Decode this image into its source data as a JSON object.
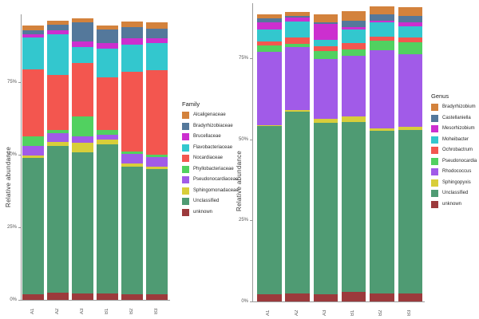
{
  "figure": {
    "background": "#ffffff",
    "axis_color": "#9a9a9a",
    "text_color": "#555555"
  },
  "chart_data": [
    {
      "type": "bar",
      "stacked": true,
      "panel": "left",
      "title": "",
      "xlabel": "",
      "ylabel": "Relative abundance",
      "legend_title": "Family",
      "legend_position": "right",
      "grid": false,
      "ylim": [
        0,
        100
      ],
      "y_ticks": [
        {
          "label": "0%",
          "value": 0
        },
        {
          "label": "25%",
          "value": 25
        },
        {
          "label": "50%",
          "value": 50
        },
        {
          "label": "75%",
          "value": 75
        }
      ],
      "categories": [
        "A1",
        "A2",
        "A3",
        "B1",
        "B2",
        "B3"
      ],
      "stack_order": "bottom-to-top",
      "series": [
        {
          "name": "unknown",
          "color": "#9c3a3c",
          "values": [
            1.8,
            2.5,
            2.3,
            2.3,
            2.0,
            2.0
          ]
        },
        {
          "name": "Unclassified",
          "color": "#4f9b73",
          "values": [
            47.1,
            50.5,
            48.5,
            51.3,
            44.0,
            43.0
          ]
        },
        {
          "name": "Sphingomonadaceae",
          "color": "#d8ce3a",
          "values": [
            0.9,
            1.4,
            3.2,
            1.6,
            1.0,
            0.9
          ]
        },
        {
          "name": "Pseudonocardiaceae",
          "color": "#a15be8",
          "values": [
            3.2,
            2.9,
            2.3,
            1.6,
            3.4,
            3.3
          ]
        },
        {
          "name": "Phyllobacteriaceae",
          "color": "#51d160",
          "values": [
            3.2,
            1.1,
            6.9,
            1.6,
            0.8,
            0.9
          ]
        },
        {
          "name": "Nocardiaceae",
          "color": "#f3564f",
          "values": [
            23.1,
            19.2,
            18.3,
            18.3,
            27.5,
            29.1
          ]
        },
        {
          "name": "Flavobacteriaceae",
          "color": "#33c7ce",
          "values": [
            11.0,
            13.8,
            5.6,
            9.9,
            9.3,
            9.4
          ]
        },
        {
          "name": "Brucellaceae",
          "color": "#cc2fcf",
          "values": [
            1.1,
            1.4,
            1.9,
            1.9,
            2.0,
            1.4
          ]
        },
        {
          "name": "Bradyrhizobiaceae",
          "color": "#54789b",
          "values": [
            1.6,
            1.9,
            6.6,
            4.7,
            4.1,
            3.3
          ]
        },
        {
          "name": "Alcaligenaceae",
          "color": "#d3823c",
          "values": [
            1.6,
            1.4,
            1.4,
            1.4,
            1.9,
            2.4
          ]
        }
      ]
    },
    {
      "type": "bar",
      "stacked": true,
      "panel": "right",
      "title": "",
      "xlabel": "",
      "ylabel": "Relative abundance",
      "legend_title": "Genus",
      "legend_position": "right",
      "grid": false,
      "ylim": [
        0,
        100
      ],
      "y_ticks": [
        {
          "label": "0%",
          "value": 0
        },
        {
          "label": "25%",
          "value": 25
        },
        {
          "label": "50%",
          "value": 50
        },
        {
          "label": "75%",
          "value": 75
        }
      ],
      "categories": [
        "A1",
        "A2",
        "A3",
        "B1",
        "B2",
        "B3"
      ],
      "stack_order": "bottom-to-top",
      "series": [
        {
          "name": "unknown",
          "color": "#9c3a3c",
          "values": [
            2.1,
            2.4,
            2.1,
            2.9,
            2.4,
            2.4
          ]
        },
        {
          "name": "Unclassified",
          "color": "#4f9b73",
          "values": [
            52.0,
            56.2,
            53.0,
            52.4,
            50.1,
            50.5
          ]
        },
        {
          "name": "Sphingopyxis",
          "color": "#d8ce3a",
          "values": [
            0.3,
            0.3,
            1.2,
            1.6,
            0.8,
            0.8
          ]
        },
        {
          "name": "Rhodococcus",
          "color": "#a15be8",
          "values": [
            22.4,
            19.6,
            18.4,
            18.7,
            24.2,
            22.4
          ]
        },
        {
          "name": "Pseudonocardia",
          "color": "#51d160",
          "values": [
            2.0,
            0.8,
            2.4,
            2.0,
            2.8,
            3.7
          ]
        },
        {
          "name": "Ochrobactrum",
          "color": "#f3564f",
          "values": [
            1.2,
            2.0,
            1.6,
            2.0,
            1.2,
            1.6
          ]
        },
        {
          "name": "Moheibacter",
          "color": "#33c7ce",
          "values": [
            3.7,
            4.9,
            2.0,
            4.1,
            4.5,
            3.3
          ]
        },
        {
          "name": "Mesorhizobium",
          "color": "#cc2fcf",
          "values": [
            2.4,
            1.2,
            4.9,
            0.8,
            0.5,
            1.2
          ]
        },
        {
          "name": "Castellaniella",
          "color": "#54789b",
          "values": [
            1.2,
            0.5,
            0.3,
            2.0,
            2.0,
            2.0
          ]
        },
        {
          "name": "Bradyrhizobium",
          "color": "#d3823c",
          "values": [
            1.2,
            1.2,
            2.5,
            2.9,
            2.4,
            2.9
          ]
        }
      ]
    }
  ]
}
